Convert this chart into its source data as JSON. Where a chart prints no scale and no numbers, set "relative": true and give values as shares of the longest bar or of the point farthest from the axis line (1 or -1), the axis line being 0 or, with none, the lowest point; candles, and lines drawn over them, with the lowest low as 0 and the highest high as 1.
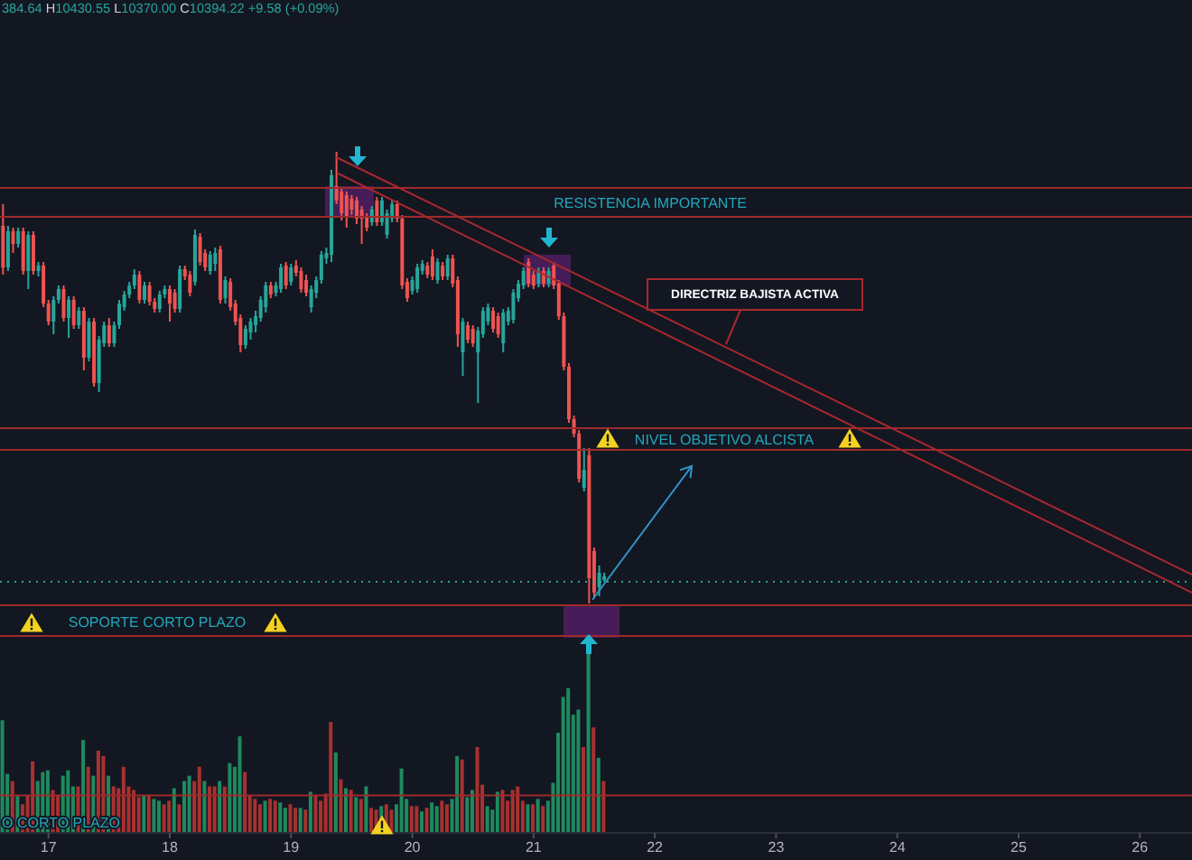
{
  "chart_data": [
    {
      "type": "candlestick",
      "relative": true,
      "tick_labels": false,
      "x": [
        16.625,
        16.6667,
        16.7083,
        16.75,
        16.7917,
        16.8333,
        16.875,
        16.9167,
        16.9583,
        17,
        17.0417,
        17.0833,
        17.125,
        17.1667,
        17.2083,
        17.25,
        17.2917,
        17.3333,
        17.375,
        17.4167,
        17.4583,
        17.5,
        17.5417,
        17.5833,
        17.625,
        17.6667,
        17.7083,
        17.75,
        17.7917,
        17.8333,
        17.875,
        17.9167,
        17.9583,
        18,
        18.0417,
        18.0833,
        18.125,
        18.1667,
        18.2083,
        18.25,
        18.2917,
        18.3333,
        18.375,
        18.4167,
        18.4583,
        18.5,
        18.5417,
        18.5833,
        18.625,
        18.6667,
        18.7083,
        18.75,
        18.7917,
        18.8333,
        18.875,
        18.9167,
        18.9583,
        19,
        19.0417,
        19.0833,
        19.125,
        19.1667,
        19.2083,
        19.25,
        19.2917,
        19.3333,
        19.375,
        19.4167,
        19.4583,
        19.5,
        19.5417,
        19.5833,
        19.625,
        19.6667,
        19.7083,
        19.75,
        19.7917,
        19.8333,
        19.875,
        19.9167,
        19.9583,
        20,
        20.0417,
        20.0833,
        20.125,
        20.1667,
        20.2083,
        20.25,
        20.2917,
        20.3333,
        20.375,
        20.4167,
        20.4583,
        20.5,
        20.5417,
        20.5833,
        20.625,
        20.6667,
        20.7083,
        20.75,
        20.7917,
        20.8333,
        20.875,
        20.9167,
        20.9583,
        21,
        21.0417,
        21.0833,
        21.125,
        21.1667,
        21.2083,
        21.25,
        21.2917,
        21.3333,
        21.375,
        21.4167,
        21.4583,
        21.5,
        21.5417,
        21.5833
      ],
      "ohlc": [
        [
          0.836,
          0.884,
          0.728,
          0.744
        ],
        [
          0.744,
          0.836,
          0.736,
          0.824
        ],
        [
          0.824,
          0.832,
          0.776,
          0.796
        ],
        [
          0.796,
          0.832,
          0.788,
          0.824
        ],
        [
          0.824,
          0.832,
          0.728,
          0.736
        ],
        [
          0.736,
          0.824,
          0.696,
          0.816
        ],
        [
          0.816,
          0.824,
          0.728,
          0.736
        ],
        [
          0.736,
          0.756,
          0.724,
          0.748
        ],
        [
          0.748,
          0.756,
          0.656,
          0.664
        ],
        [
          0.664,
          0.672,
          0.616,
          0.624
        ],
        [
          0.624,
          0.68,
          0.596,
          0.672
        ],
        [
          0.672,
          0.704,
          0.664,
          0.696
        ],
        [
          0.696,
          0.704,
          0.624,
          0.632
        ],
        [
          0.632,
          0.68,
          0.588,
          0.672
        ],
        [
          0.672,
          0.68,
          0.608,
          0.616
        ],
        [
          0.616,
          0.656,
          0.608,
          0.648
        ],
        [
          0.648,
          0.656,
          0.516,
          0.544
        ],
        [
          0.544,
          0.632,
          0.536,
          0.624
        ],
        [
          0.624,
          0.632,
          0.48,
          0.488
        ],
        [
          0.488,
          0.592,
          0.468,
          0.584
        ],
        [
          0.576,
          0.624,
          0.568,
          0.616
        ],
        [
          0.616,
          0.632,
          0.568,
          0.576
        ],
        [
          0.576,
          0.624,
          0.568,
          0.616
        ],
        [
          0.616,
          0.672,
          0.608,
          0.664
        ],
        [
          0.656,
          0.692,
          0.648,
          0.684
        ],
        [
          0.684,
          0.712,
          0.676,
          0.704
        ],
        [
          0.704,
          0.74,
          0.696,
          0.728
        ],
        [
          0.728,
          0.736,
          0.664,
          0.672
        ],
        [
          0.672,
          0.712,
          0.664,
          0.704
        ],
        [
          0.704,
          0.712,
          0.66,
          0.668
        ],
        [
          0.668,
          0.676,
          0.644,
          0.652
        ],
        [
          0.652,
          0.692,
          0.644,
          0.684
        ],
        [
          0.684,
          0.704,
          0.676,
          0.696
        ],
        [
          0.696,
          0.704,
          0.624,
          0.664
        ],
        [
          0.688,
          0.696,
          0.644,
          0.652
        ],
        [
          0.652,
          0.748,
          0.644,
          0.74
        ],
        [
          0.74,
          0.748,
          0.716,
          0.724
        ],
        [
          0.728,
          0.736,
          0.68,
          0.688
        ],
        [
          0.712,
          0.828,
          0.704,
          0.816
        ],
        [
          0.812,
          0.82,
          0.748,
          0.756
        ],
        [
          0.776,
          0.784,
          0.736,
          0.744
        ],
        [
          0.736,
          0.78,
          0.728,
          0.772
        ],
        [
          0.752,
          0.788,
          0.736,
          0.776
        ],
        [
          0.784,
          0.792,
          0.664,
          0.672
        ],
        [
          0.676,
          0.724,
          0.664,
          0.716
        ],
        [
          0.712,
          0.72,
          0.648,
          0.656
        ],
        [
          0.664,
          0.672,
          0.616,
          0.624
        ],
        [
          0.632,
          0.64,
          0.556,
          0.572
        ],
        [
          0.572,
          0.616,
          0.564,
          0.608
        ],
        [
          0.6,
          0.632,
          0.584,
          0.624
        ],
        [
          0.616,
          0.648,
          0.6,
          0.636
        ],
        [
          0.632,
          0.68,
          0.624,
          0.672
        ],
        [
          0.656,
          0.712,
          0.644,
          0.704
        ],
        [
          0.704,
          0.712,
          0.676,
          0.684
        ],
        [
          0.688,
          0.712,
          0.68,
          0.704
        ],
        [
          0.696,
          0.752,
          0.688,
          0.744
        ],
        [
          0.748,
          0.756,
          0.696,
          0.704
        ],
        [
          0.712,
          0.752,
          0.704,
          0.744
        ],
        [
          0.748,
          0.76,
          0.724,
          0.732
        ],
        [
          0.736,
          0.744,
          0.688,
          0.696
        ],
        [
          0.716,
          0.728,
          0.68,
          0.688
        ],
        [
          0.656,
          0.704,
          0.644,
          0.696
        ],
        [
          0.688,
          0.724,
          0.676,
          0.716
        ],
        [
          0.716,
          0.78,
          0.708,
          0.772
        ],
        [
          0.764,
          0.788,
          0.752,
          0.776
        ],
        [
          0.772,
          0.96,
          0.756,
          0.948
        ],
        [
          0.924,
          1,
          0.884,
          0.892
        ],
        [
          0.912,
          0.92,
          0.848,
          0.864
        ],
        [
          0.904,
          0.912,
          0.832,
          0.856
        ],
        [
          0.896,
          0.904,
          0.86,
          0.872
        ],
        [
          0.892,
          0.9,
          0.84,
          0.852
        ],
        [
          0.872,
          0.88,
          0.796,
          0.852
        ],
        [
          0.856,
          0.864,
          0.824,
          0.832
        ],
        [
          0.844,
          0.88,
          0.836,
          0.872
        ],
        [
          0.892,
          0.9,
          0.836,
          0.844
        ],
        [
          0.844,
          0.9,
          0.836,
          0.892
        ],
        [
          0.816,
          0.872,
          0.808,
          0.864
        ],
        [
          0.852,
          0.892,
          0.844,
          0.884
        ],
        [
          0.884,
          0.892,
          0.844,
          0.852
        ],
        [
          0.852,
          0.86,
          0.696,
          0.704
        ],
        [
          0.712,
          0.72,
          0.668,
          0.676
        ],
        [
          0.692,
          0.724,
          0.684,
          0.716
        ],
        [
          0.696,
          0.752,
          0.688,
          0.744
        ],
        [
          0.736,
          0.76,
          0.728,
          0.752
        ],
        [
          0.748,
          0.756,
          0.72,
          0.728
        ],
        [
          0.768,
          0.784,
          0.716,
          0.724
        ],
        [
          0.716,
          0.764,
          0.708,
          0.756
        ],
        [
          0.748,
          0.756,
          0.716,
          0.724
        ],
        [
          0.724,
          0.772,
          0.716,
          0.764
        ],
        [
          0.764,
          0.772,
          0.7,
          0.708
        ],
        [
          0.716,
          0.724,
          0.568,
          0.596
        ],
        [
          0.556,
          0.632,
          0.504,
          0.624
        ],
        [
          0.616,
          0.624,
          0.576,
          0.584
        ],
        [
          0.608,
          0.616,
          0.568,
          0.576
        ],
        [
          0.556,
          0.612,
          0.444,
          0.604
        ],
        [
          0.596,
          0.656,
          0.588,
          0.648
        ],
        [
          0.624,
          0.664,
          0.616,
          0.656
        ],
        [
          0.648,
          0.656,
          0.6,
          0.608
        ],
        [
          0.636,
          0.644,
          0.588,
          0.596
        ],
        [
          0.576,
          0.652,
          0.556,
          0.644
        ],
        [
          0.624,
          0.656,
          0.616,
          0.648
        ],
        [
          0.628,
          0.696,
          0.62,
          0.688
        ],
        [
          0.676,
          0.716,
          0.668,
          0.708
        ],
        [
          0.704,
          0.744,
          0.696,
          0.736
        ],
        [
          0.756,
          0.764,
          0.7,
          0.708
        ],
        [
          0.728,
          0.736,
          0.696,
          0.704
        ],
        [
          0.708,
          0.744,
          0.7,
          0.736
        ],
        [
          0.736,
          0.744,
          0.7,
          0.708
        ],
        [
          0.708,
          0.744,
          0.7,
          0.736
        ],
        [
          0.748,
          0.756,
          0.696,
          0.704
        ],
        [
          0.708,
          0.716,
          0.628,
          0.636
        ],
        [
          0.636,
          0.644,
          0.516,
          0.524
        ],
        [
          0.524,
          0.532,
          0.4,
          0.408
        ],
        [
          0.408,
          0.416,
          0.368,
          0.376
        ],
        [
          0.376,
          0.384,
          0.268,
          0.276
        ],
        [
          0.256,
          0.344,
          0.248,
          0.296
        ],
        [
          0.328,
          0.344,
          0,
          0.056
        ],
        [
          0.116,
          0.124,
          0.012,
          0.024
        ],
        [
          0.036,
          0.084,
          0.016,
          0.068
        ],
        [
          0.052,
          0.068,
          0.048,
          0.06
        ]
      ],
      "colors": [
        "#ef5350",
        "#26a69a",
        "#ef5350",
        "#26a69a",
        "#ef5350",
        "#26a69a",
        "#ef5350",
        "#26a69a",
        "#ef5350",
        "#ef5350",
        "#26a69a",
        "#26a69a",
        "#ef5350",
        "#26a69a",
        "#ef5350",
        "#26a69a",
        "#ef5350",
        "#26a69a",
        "#ef5350",
        "#26a69a",
        "#26a69a",
        "#ef5350",
        "#26a69a",
        "#26a69a",
        "#26a69a",
        "#26a69a",
        "#26a69a",
        "#ef5350",
        "#26a69a",
        "#ef5350",
        "#ef5350",
        "#26a69a",
        "#26a69a",
        "#ef5350",
        "#ef5350",
        "#26a69a",
        "#ef5350",
        "#ef5350",
        "#26a69a",
        "#ef5350",
        "#ef5350",
        "#26a69a",
        "#26a69a",
        "#ef5350",
        "#26a69a",
        "#ef5350",
        "#ef5350",
        "#ef5350",
        "#26a69a",
        "#26a69a",
        "#26a69a",
        "#26a69a",
        "#26a69a",
        "#ef5350",
        "#26a69a",
        "#26a69a",
        "#ef5350",
        "#26a69a",
        "#ef5350",
        "#ef5350",
        "#ef5350",
        "#26a69a",
        "#26a69a",
        "#26a69a",
        "#26a69a",
        "#26a69a",
        "#ef5350",
        "#ef5350",
        "#ef5350",
        "#ef5350",
        "#ef5350",
        "#ef5350",
        "#ef5350",
        "#26a69a",
        "#ef5350",
        "#26a69a",
        "#26a69a",
        "#26a69a",
        "#ef5350",
        "#ef5350",
        "#ef5350",
        "#26a69a",
        "#26a69a",
        "#26a69a",
        "#ef5350",
        "#ef5350",
        "#26a69a",
        "#ef5350",
        "#26a69a",
        "#ef5350",
        "#ef5350",
        "#26a69a",
        "#ef5350",
        "#ef5350",
        "#26a69a",
        "#26a69a",
        "#26a69a",
        "#ef5350",
        "#ef5350",
        "#26a69a",
        "#26a69a",
        "#26a69a",
        "#26a69a",
        "#26a69a",
        "#ef5350",
        "#ef5350",
        "#26a69a",
        "#ef5350",
        "#26a69a",
        "#ef5350",
        "#ef5350",
        "#ef5350",
        "#ef5350",
        "#ef5350",
        "#ef5350",
        "#26a69a",
        "#ef5350",
        "#ef5350",
        "#26a69a",
        "#26a69a"
      ],
      "xlim": [
        16.6,
        26.43
      ],
      "series": [
        {
          "type": "line",
          "color": "#a8282d",
          "x": [
            19.372,
            26.43
          ],
          "values": [
            0.988,
            0.064
          ]
        },
        {
          "type": "line",
          "color": "#a8282d",
          "x": [
            19.387,
            26.43
          ],
          "values": [
            0.952,
            0.024
          ]
        }
      ],
      "ref_lines": [
        {
          "axis": "y",
          "value": 0.92,
          "color": "#9e2a2b"
        },
        {
          "axis": "y",
          "value": 0.856,
          "color": "#9e2a2b"
        },
        {
          "axis": "y",
          "value": 0.388,
          "color": "#9e2a2b"
        },
        {
          "axis": "y",
          "value": 0.34,
          "color": "#9e2a2b"
        },
        {
          "axis": "y",
          "value": 0.048,
          "color": "#26a69a",
          "line_style": "dotted"
        },
        {
          "axis": "y",
          "value": -0.004,
          "color": "#9e2a2b"
        },
        {
          "axis": "y",
          "value": -0.072,
          "color": "#9e2a2b"
        },
        {
          "axis": "y",
          "value": -0.425,
          "color": "#9e2a2b"
        }
      ],
      "annotations": [
        "384.64 H10430.55 L10370.00 C10394.22 +9.58 (+0.09%)",
        "RESISTENCIA IMPORTANTE",
        "DIRECTRIZ BAJISTA ACTIVA",
        "NIVEL OBJETIVO ALCISTA",
        "SOPORTE CORTO PLAZO",
        "O CORTO PLAZO"
      ]
    },
    {
      "type": "bar",
      "relative": true,
      "x": [
        16.625,
        16.6667,
        16.7083,
        16.75,
        16.7917,
        16.8333,
        16.875,
        16.9167,
        16.9583,
        17,
        17.0417,
        17.0833,
        17.125,
        17.1667,
        17.2083,
        17.25,
        17.2917,
        17.3333,
        17.375,
        17.4167,
        17.4583,
        17.5,
        17.5417,
        17.5833,
        17.625,
        17.6667,
        17.7083,
        17.75,
        17.7917,
        17.8333,
        17.875,
        17.9167,
        17.9583,
        18,
        18.0417,
        18.0833,
        18.125,
        18.1667,
        18.2083,
        18.25,
        18.2917,
        18.3333,
        18.375,
        18.4167,
        18.4583,
        18.5,
        18.5417,
        18.5833,
        18.625,
        18.6667,
        18.7083,
        18.75,
        18.7917,
        18.8333,
        18.875,
        18.9167,
        18.9583,
        19,
        19.0417,
        19.0833,
        19.125,
        19.1667,
        19.2083,
        19.25,
        19.2917,
        19.3333,
        19.375,
        19.4167,
        19.4583,
        19.5,
        19.5417,
        19.5833,
        19.625,
        19.6667,
        19.7083,
        19.75,
        19.7917,
        19.8333,
        19.875,
        19.9167,
        19.9583,
        20,
        20.0417,
        20.0833,
        20.125,
        20.1667,
        20.2083,
        20.25,
        20.2917,
        20.3333,
        20.375,
        20.4167,
        20.4583,
        20.5,
        20.5417,
        20.5833,
        20.625,
        20.6667,
        20.7083,
        20.75,
        20.7917,
        20.8333,
        20.875,
        20.9167,
        20.9583,
        21,
        21.0417,
        21.0833,
        21.125,
        21.1667,
        21.2083,
        21.25,
        21.2917,
        21.3333,
        21.375,
        21.4167,
        21.4583,
        21.5,
        21.5417,
        21.5833
      ],
      "values": [
        0.63,
        0.33,
        0.29,
        0.21,
        0.16,
        0.21,
        0.4,
        0.29,
        0.34,
        0.35,
        0.24,
        0.21,
        0.32,
        0.35,
        0.26,
        0.26,
        0.52,
        0.37,
        0.32,
        0.46,
        0.43,
        0.32,
        0.26,
        0.25,
        0.37,
        0.26,
        0.24,
        0.2,
        0.21,
        0.21,
        0.19,
        0.18,
        0.16,
        0.18,
        0.25,
        0.16,
        0.29,
        0.32,
        0.29,
        0.37,
        0.29,
        0.26,
        0.26,
        0.29,
        0.26,
        0.39,
        0.37,
        0.54,
        0.34,
        0.21,
        0.19,
        0.16,
        0.18,
        0.19,
        0.18,
        0.17,
        0.14,
        0.16,
        0.14,
        0.14,
        0.13,
        0.23,
        0.21,
        0.18,
        0.22,
        0.62,
        0.45,
        0.3,
        0.25,
        0.24,
        0.2,
        0.19,
        0.26,
        0.14,
        0.13,
        0.15,
        0.16,
        0.13,
        0.16,
        0.36,
        0.19,
        0.15,
        0.15,
        0.12,
        0.14,
        0.17,
        0.15,
        0.18,
        0.16,
        0.19,
        0.43,
        0.41,
        0.2,
        0.24,
        0.48,
        0.27,
        0.15,
        0.13,
        0.23,
        0.24,
        0.18,
        0.24,
        0.26,
        0.18,
        0.16,
        0.16,
        0.19,
        0.15,
        0.18,
        0.28,
        0.56,
        0.76,
        0.81,
        0.66,
        0.69,
        0.48,
        1,
        0.59,
        0.42,
        0.29
      ],
      "colors": [
        "#1e8a5e",
        "#1e8a5e",
        "#a8312f",
        "#1e8a5e",
        "#a8312f",
        "#a8312f",
        "#a8312f",
        "#1e8a5e",
        "#1e8a5e",
        "#1e8a5e",
        "#a8312f",
        "#a8312f",
        "#1e8a5e",
        "#1e8a5e",
        "#1e8a5e",
        "#a8312f",
        "#1e8a5e",
        "#a8312f",
        "#1e8a5e",
        "#a8312f",
        "#a8312f",
        "#1e8a5e",
        "#a8312f",
        "#a8312f",
        "#a8312f",
        "#a8312f",
        "#a8312f",
        "#a8312f",
        "#1e8a5e",
        "#a8312f",
        "#1e8a5e",
        "#1e8a5e",
        "#a8312f",
        "#a8312f",
        "#1e8a5e",
        "#a8312f",
        "#1e8a5e",
        "#1e8a5e",
        "#a8312f",
        "#a8312f",
        "#1e8a5e",
        "#a8312f",
        "#a8312f",
        "#1e8a5e",
        "#a8312f",
        "#1e8a5e",
        "#1e8a5e",
        "#1e8a5e",
        "#a8312f",
        "#a8312f",
        "#a8312f",
        "#a8312f",
        "#1e8a5e",
        "#a8312f",
        "#a8312f",
        "#1e8a5e",
        "#1e8a5e",
        "#a8312f",
        "#a8312f",
        "#1e8a5e",
        "#a8312f",
        "#1e8a5e",
        "#a8312f",
        "#a8312f",
        "#a8312f",
        "#a8312f",
        "#1e8a5e",
        "#a8312f",
        "#1e8a5e",
        "#a8312f",
        "#1e8a5e",
        "#a8312f",
        "#1e8a5e",
        "#a8312f",
        "#a8312f",
        "#1e8a5e",
        "#a8312f",
        "#a8312f",
        "#1e8a5e",
        "#1e8a5e",
        "#1e8a5e",
        "#a8312f",
        "#a8312f",
        "#1e8a5e",
        "#a8312f",
        "#1e8a5e",
        "#1e8a5e",
        "#a8312f",
        "#a8312f",
        "#1e8a5e",
        "#1e8a5e",
        "#a8312f",
        "#1e8a5e",
        "#1e8a5e",
        "#a8312f",
        "#a8312f",
        "#1e8a5e",
        "#1e8a5e",
        "#1e8a5e",
        "#a8312f",
        "#a8312f",
        "#a8312f",
        "#a8312f",
        "#a8312f",
        "#1e8a5e",
        "#a8312f",
        "#1e8a5e",
        "#a8312f",
        "#1e8a5e",
        "#1e8a5e",
        "#1e8a5e",
        "#1e8a5e",
        "#1e8a5e",
        "#1e8a5e",
        "#1e8a5e",
        "#a8312f",
        "#1e8a5e",
        "#a8312f",
        "#1e8a5e",
        "#a8312f"
      ],
      "xlim": [
        16.6,
        26.43
      ],
      "xticks": [
        17,
        18,
        19,
        20,
        21,
        22,
        23,
        24,
        25,
        26
      ]
    }
  ]
}
